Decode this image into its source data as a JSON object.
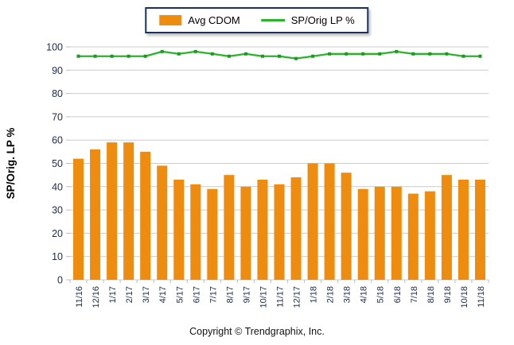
{
  "legend": {
    "items": [
      {
        "label": "Avg CDOM",
        "type": "bar",
        "color": "#EE8C0F"
      },
      {
        "label": "SP/Orig LP %",
        "type": "line",
        "color": "#2CB32C"
      }
    ]
  },
  "footer": {
    "copyright": "Copyright © Trendgraphix, Inc."
  },
  "colors": {
    "bar": "#EE8C0F",
    "line": "#2CB32C",
    "line_marker": "#1D9A1D",
    "grid": "#CCCCCC",
    "axis": "#BEBEBE",
    "tick_label": "#1C2B4A",
    "axis_title": "#000000"
  },
  "chart_data": {
    "type": "bar",
    "subtype": "bar+line combo",
    "categories": [
      "11/16",
      "12/16",
      "1/17",
      "2/17",
      "3/17",
      "4/17",
      "5/17",
      "6/17",
      "7/17",
      "8/17",
      "9/17",
      "10/17",
      "11/17",
      "12/17",
      "1/18",
      "2/18",
      "3/18",
      "4/18",
      "5/18",
      "6/18",
      "7/18",
      "8/18",
      "9/18",
      "10/18",
      "11/18"
    ],
    "series": [
      {
        "name": "Avg CDOM",
        "type": "bar",
        "color": "#EE8C0F",
        "values": [
          52,
          56,
          59,
          59,
          55,
          49,
          43,
          41,
          39,
          45,
          40,
          43,
          41,
          44,
          50,
          50,
          46,
          39,
          40,
          40,
          37,
          38,
          45,
          43,
          43
        ]
      },
      {
        "name": "SP/Orig LP %",
        "type": "line",
        "color": "#2CB32C",
        "values": [
          96,
          96,
          96,
          96,
          96,
          98,
          97,
          98,
          97,
          96,
          97,
          96,
          96,
          95,
          96,
          97,
          97,
          97,
          97,
          98,
          97,
          97,
          97,
          96,
          96
        ]
      }
    ],
    "title": "",
    "xlabel": "",
    "ylabel": "SP/Orig. LP %",
    "ylim": [
      0,
      100
    ],
    "ytick_step": 10,
    "grid": true,
    "legend_position": "top-center",
    "x_tick_label_rotation": -90
  }
}
